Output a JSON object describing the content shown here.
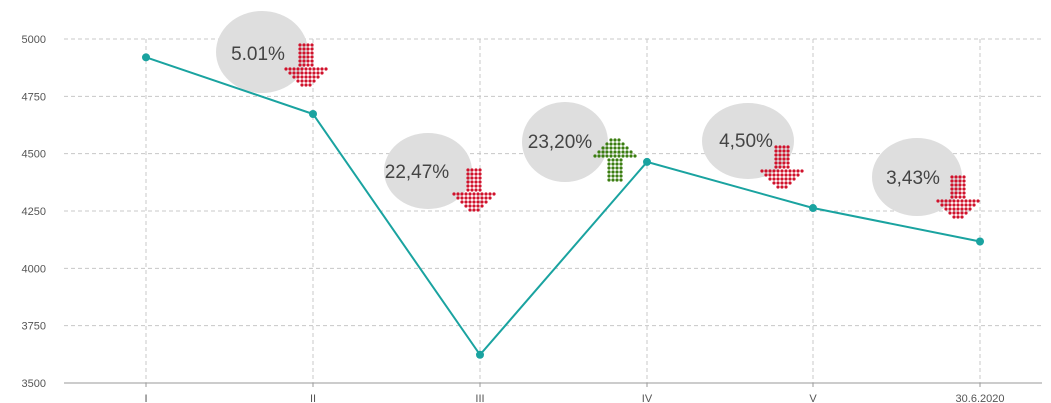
{
  "chart_data": {
    "type": "line",
    "categories": [
      "I",
      "II",
      "III",
      "IV",
      "V",
      "30.6.2020"
    ],
    "values": [
      4920,
      4673,
      3623,
      4464,
      4263,
      4117
    ],
    "ylim": [
      3500,
      5000
    ],
    "yticks": [
      5000,
      4750,
      4500,
      4250,
      4000,
      3750,
      3500
    ],
    "grid": true,
    "line_color": "#1aa3a0",
    "annotations": [
      {
        "text": "5.01%",
        "direction": "down",
        "color": "#d0112b"
      },
      {
        "text": "22,47%",
        "direction": "down",
        "color": "#d0112b"
      },
      {
        "text": "23,20%",
        "direction": "up",
        "color": "#3a7d10"
      },
      {
        "text": "4,50%",
        "direction": "down",
        "color": "#d0112b"
      },
      {
        "text": "3,43%",
        "direction": "down",
        "color": "#d0112b"
      }
    ],
    "bubble_color": "#dedede",
    "arrow_icon": "dotted-arrow-icon"
  }
}
